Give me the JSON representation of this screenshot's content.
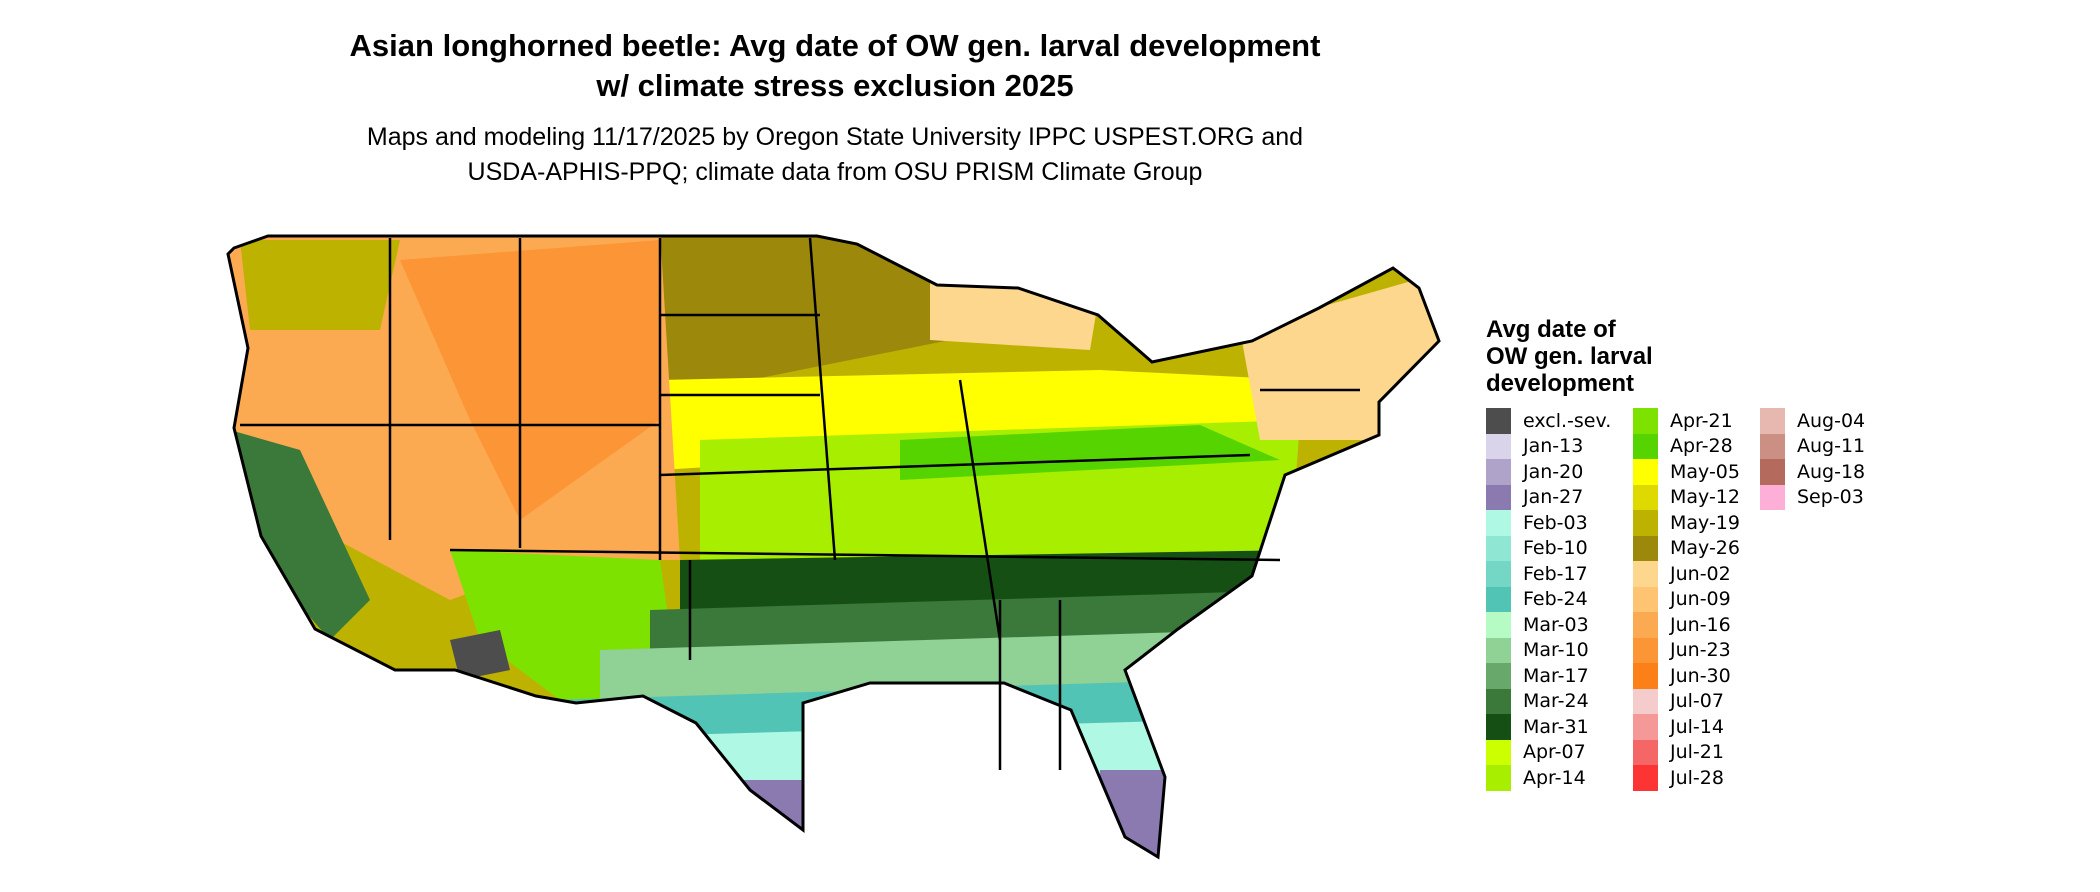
{
  "title": {
    "line1": "Asian longhorned beetle: Avg date of OW gen. larval development",
    "line2": "w/ climate stress exclusion 2025"
  },
  "subtitle": {
    "line1": "Maps and modeling 11/17/2025 by Oregon State University IPPC USPEST.ORG and",
    "line2": "USDA-APHIS-PPQ; climate data from OSU PRISM Climate Group"
  },
  "legend": {
    "title_lines": [
      "Avg date of",
      "OW gen. larval",
      "development"
    ],
    "columns": [
      [
        {
          "label": "excl.-sev.",
          "color": "#4D4D4D"
        },
        {
          "label": "Jan-13",
          "color": "#DAD4EA"
        },
        {
          "label": "Jan-20",
          "color": "#AFA3CA"
        },
        {
          "label": "Jan-27",
          "color": "#8A7AB0"
        },
        {
          "label": "Feb-03",
          "color": "#AEF8E4"
        },
        {
          "label": "Feb-10",
          "color": "#8FE6D2"
        },
        {
          "label": "Feb-17",
          "color": "#74D6C4"
        },
        {
          "label": "Feb-24",
          "color": "#52C4B6"
        },
        {
          "label": "Mar-03",
          "color": "#B6FAC4"
        },
        {
          "label": "Mar-10",
          "color": "#90D196"
        },
        {
          "label": "Mar-17",
          "color": "#68A86A"
        },
        {
          "label": "Mar-24",
          "color": "#3A793A"
        },
        {
          "label": "Mar-31",
          "color": "#154F14"
        },
        {
          "label": "Apr-07",
          "color": "#CCFF00"
        },
        {
          "label": "Apr-14",
          "color": "#A8EE00"
        }
      ],
      [
        {
          "label": "Apr-21",
          "color": "#7EE200"
        },
        {
          "label": "Apr-28",
          "color": "#55D400"
        },
        {
          "label": "May-05",
          "color": "#FFFF00"
        },
        {
          "label": "May-12",
          "color": "#DEDA00"
        },
        {
          "label": "May-19",
          "color": "#BEB200"
        },
        {
          "label": "May-26",
          "color": "#9C880A"
        },
        {
          "label": "Jun-02",
          "color": "#FDD78E"
        },
        {
          "label": "Jun-09",
          "color": "#FEC472"
        },
        {
          "label": "Jun-16",
          "color": "#FCAA52"
        },
        {
          "label": "Jun-23",
          "color": "#FC9536"
        },
        {
          "label": "Jun-30",
          "color": "#FC8018"
        },
        {
          "label": "Jul-07",
          "color": "#F4CCCC"
        },
        {
          "label": "Jul-14",
          "color": "#F49898"
        },
        {
          "label": "Jul-21",
          "color": "#F56666"
        },
        {
          "label": "Jul-28",
          "color": "#FC3434"
        }
      ],
      [
        {
          "label": "Aug-04",
          "color": "#E6B8AF"
        },
        {
          "label": "Aug-11",
          "color": "#CC8F84"
        },
        {
          "label": "Aug-18",
          "color": "#B46A5C"
        },
        {
          "label": "Sep-03",
          "color": "#FDAFD8"
        }
      ]
    ]
  }
}
